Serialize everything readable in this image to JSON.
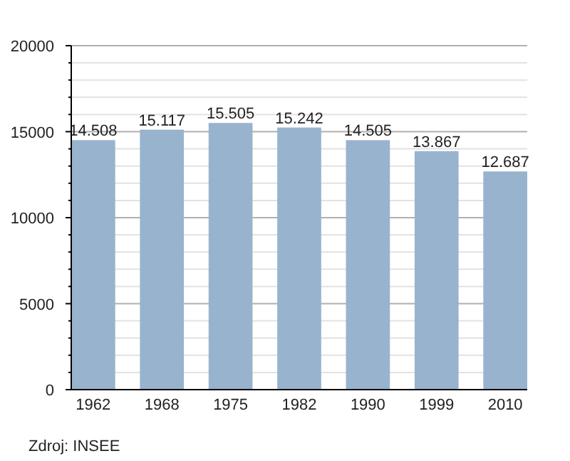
{
  "chart_data": {
    "type": "bar",
    "categories": [
      "1962",
      "1968",
      "1975",
      "1982",
      "1990",
      "1999",
      "2010"
    ],
    "values": [
      14508,
      15117,
      15505,
      15242,
      14505,
      13867,
      12687
    ],
    "value_labels": [
      "14.508",
      "15.117",
      "15.505",
      "15.242",
      "14.505",
      "13.867",
      "12.687"
    ],
    "color": "#98b3cd",
    "ylim": [
      0,
      20000
    ],
    "yticks": [
      0,
      {
        "value": 1000,
        "label": null
      },
      {
        "value": 2000,
        "label": null
      },
      {
        "value": 3000,
        "label": null
      },
      {
        "value": 4000,
        "label": null
      },
      5000,
      {
        "value": 6000,
        "label": null
      },
      {
        "value": 7000,
        "label": null
      },
      {
        "value": 8000,
        "label": null
      },
      {
        "value": 9000,
        "label": null
      },
      10000,
      {
        "value": 11000,
        "label": null
      },
      {
        "value": 12000,
        "label": null
      },
      {
        "value": 13000,
        "label": null
      },
      {
        "value": 14000,
        "label": null
      },
      15000,
      {
        "value": 16000,
        "label": null
      },
      {
        "value": 17000,
        "label": null
      },
      {
        "value": 18000,
        "label": null
      },
      {
        "value": 19000,
        "label": null
      },
      20000
    ],
    "grid": true,
    "annotations": [
      "Zdroj: INSEE"
    ]
  }
}
